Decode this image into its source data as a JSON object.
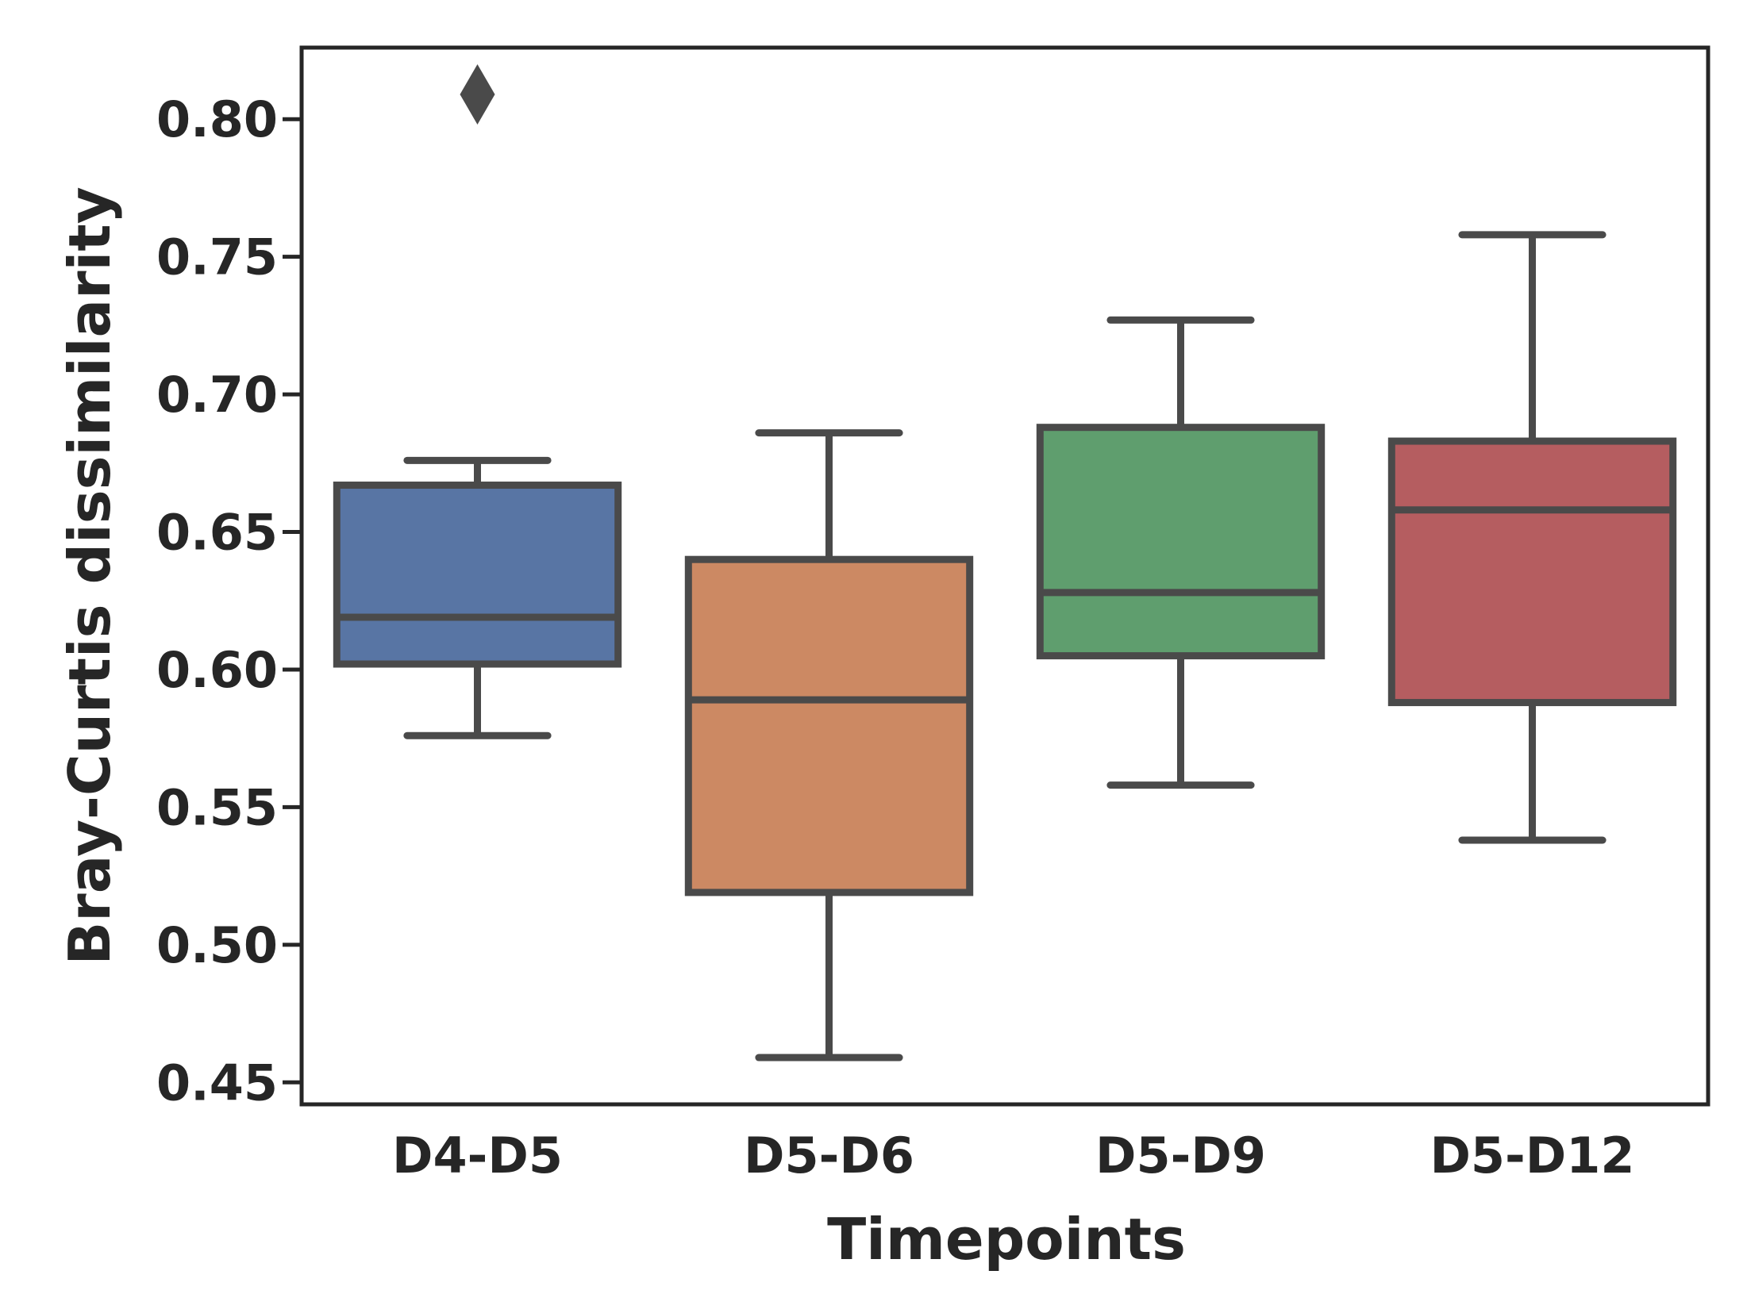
{
  "chart_data": {
    "type": "box",
    "xlabel": "Timepoints",
    "ylabel": "Bray-Curtis dissimilarity",
    "ylim": [
      0.442,
      0.826
    ],
    "yticks": [
      "0.45",
      "0.50",
      "0.55",
      "0.60",
      "0.65",
      "0.70",
      "0.75",
      "0.80"
    ],
    "grid": false,
    "categories": [
      "D4-D5",
      "D5-D6",
      "D5-D9",
      "D5-D12"
    ],
    "boxes": [
      {
        "category": "D4-D5",
        "whislo": 0.576,
        "q1": 0.602,
        "med": 0.619,
        "q3": 0.667,
        "whishi": 0.676,
        "fliers": [
          0.809
        ],
        "color": "#5875a4"
      },
      {
        "category": "D5-D6",
        "whislo": 0.459,
        "q1": 0.519,
        "med": 0.589,
        "q3": 0.64,
        "whishi": 0.686,
        "fliers": [],
        "color": "#cc8963"
      },
      {
        "category": "D5-D9",
        "whislo": 0.558,
        "q1": 0.605,
        "med": 0.628,
        "q3": 0.688,
        "whishi": 0.727,
        "fliers": [],
        "color": "#5f9e6e"
      },
      {
        "category": "D5-D12",
        "whislo": 0.538,
        "q1": 0.588,
        "med": 0.658,
        "q3": 0.683,
        "whishi": 0.758,
        "fliers": [],
        "color": "#b55d60"
      }
    ],
    "line_color": "#4a4a4a",
    "frame_color": "#262626"
  }
}
